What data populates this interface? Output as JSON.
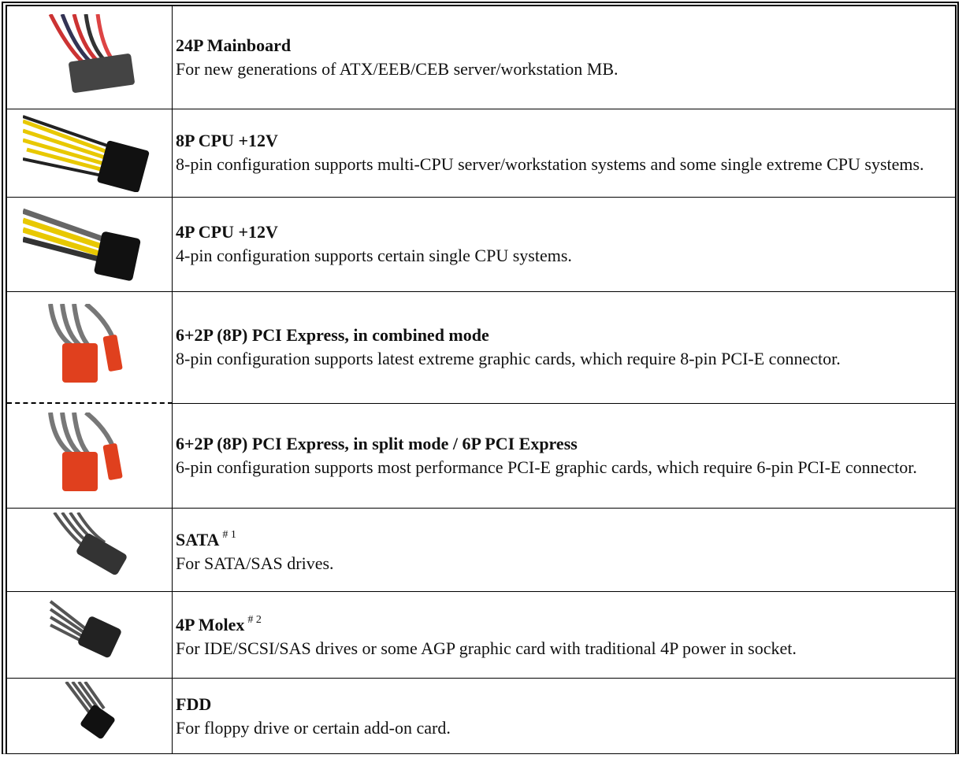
{
  "rows": [
    {
      "title": "24P Mainboard",
      "description": "For new generations of ATX/EEB/CEB server/workstation MB."
    },
    {
      "title": "8P CPU +12V",
      "description": "8-pin configuration supports multi-CPU server/workstation systems and some single extreme CPU systems."
    },
    {
      "title": "4P CPU +12V",
      "description": "4-pin configuration supports certain single CPU systems."
    },
    {
      "title": "6+2P (8P) PCI Express, in combined mode",
      "description": "8-pin configuration supports latest extreme graphic cards, which require 8-pin PCI-E connector."
    },
    {
      "title": "6+2P (8P) PCI Express, in split mode / 6P PCI Express",
      "description": "6-pin configuration supports most performance PCI-E graphic cards, which require 6-pin PCI-E connector."
    },
    {
      "title": "SATA",
      "note": "# 1",
      "description": "For SATA/SAS drives."
    },
    {
      "title": "4P Molex",
      "note": "# 2",
      "description": "For IDE/SCSI/SAS drives or some AGP graphic card with traditional 4P power in socket."
    },
    {
      "title": "FDD",
      "description": "For floppy drive or certain add-on card."
    }
  ]
}
